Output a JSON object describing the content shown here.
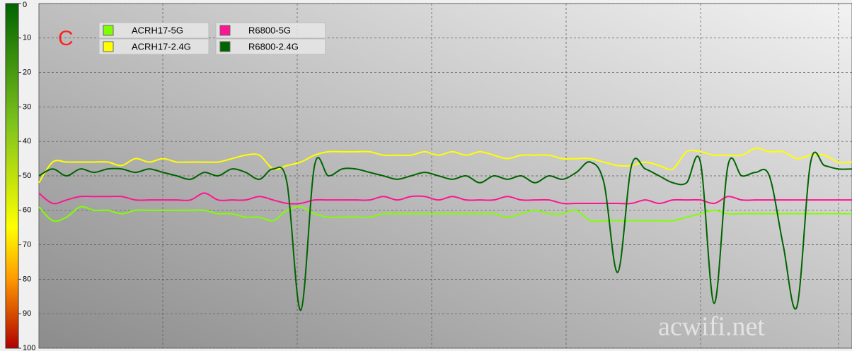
{
  "chart_data": {
    "type": "line",
    "annotation": "C",
    "watermark": "acwifi.net",
    "ylim": [
      0,
      100
    ],
    "y_inverted": true,
    "yticks": [
      0,
      10,
      20,
      30,
      40,
      50,
      60,
      70,
      80,
      90,
      100
    ],
    "grid": true,
    "legend": "top-left",
    "series": [
      {
        "name": "ACRH17-5G",
        "color": "#80ff00",
        "values": [
          59,
          63,
          62,
          59,
          60,
          60,
          61,
          60,
          60,
          60,
          60,
          60,
          60,
          61,
          61,
          62,
          62,
          63,
          60,
          59,
          61,
          62,
          62,
          62,
          62,
          61,
          61,
          61,
          61,
          61,
          61,
          61,
          61,
          61,
          62,
          61,
          60,
          61,
          61,
          60,
          63,
          63,
          63,
          63,
          63,
          63,
          63,
          62,
          61,
          60,
          61,
          61,
          61,
          61,
          61,
          61,
          61,
          61,
          61,
          61
        ]
      },
      {
        "name": "ACRH17-2.4G",
        "color": "#ffff00",
        "values": [
          52,
          46,
          46,
          46,
          46,
          46,
          47,
          45,
          46,
          45,
          46,
          46,
          46,
          46,
          45,
          44,
          44,
          48,
          47,
          46,
          44,
          43,
          43,
          43,
          43,
          44,
          44,
          44,
          43,
          44,
          43,
          44,
          43,
          44,
          45,
          44,
          44,
          44,
          45,
          45,
          45,
          46,
          47,
          47,
          46,
          47,
          48,
          43,
          43,
          44,
          44,
          44,
          42,
          43,
          43,
          45,
          44,
          44,
          46,
          46
        ]
      },
      {
        "name": "R6800-5G",
        "color": "#ff1493",
        "values": [
          55,
          58,
          57,
          56,
          56,
          56,
          56,
          57,
          57,
          57,
          57,
          57,
          55,
          57,
          57,
          57,
          56,
          57,
          58,
          58,
          57,
          57,
          57,
          57,
          57,
          56,
          57,
          56,
          56,
          57,
          56,
          57,
          57,
          57,
          56,
          57,
          57,
          57,
          58,
          58,
          58,
          58,
          58,
          58,
          57,
          58,
          57,
          57,
          57,
          58,
          56,
          57,
          57,
          57,
          57,
          57,
          57,
          57,
          57,
          57
        ]
      },
      {
        "name": "R6800-2.4G",
        "color": "#006400",
        "values": [
          50,
          48,
          50,
          48,
          49,
          48,
          48,
          49,
          48,
          49,
          50,
          51,
          49,
          50,
          48,
          49,
          51,
          48,
          52,
          89,
          47,
          50,
          48,
          48,
          49,
          50,
          51,
          50,
          49,
          50,
          51,
          50,
          52,
          50,
          51,
          50,
          52,
          50,
          51,
          49,
          46,
          52,
          78,
          47,
          48,
          50,
          52,
          52,
          46,
          87,
          47,
          50,
          49,
          50,
          70,
          88,
          46,
          47,
          48,
          48
        ]
      }
    ]
  }
}
